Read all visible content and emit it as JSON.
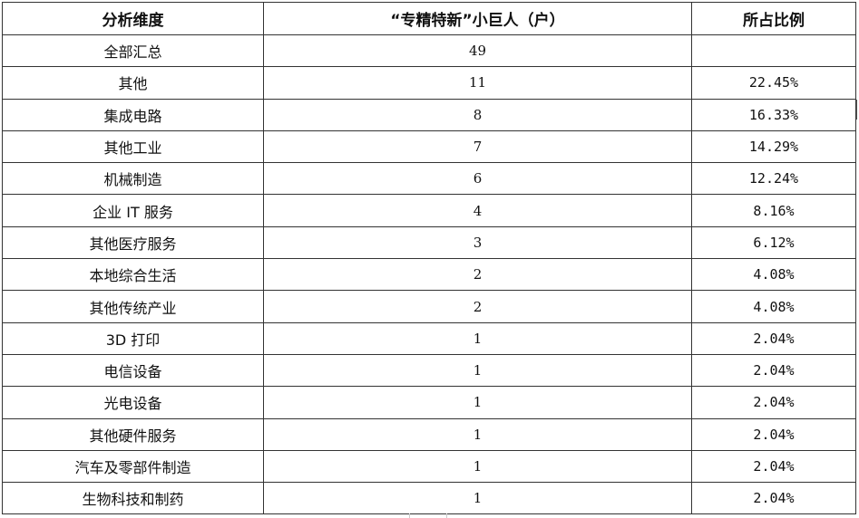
{
  "table": {
    "headers": [
      "分析维度",
      "“专精特新”小巨人（户）",
      "所占比例"
    ],
    "rows": [
      {
        "dimension": "全部汇总",
        "count": "49",
        "ratio": ""
      },
      {
        "dimension": "其他",
        "count": "11",
        "ratio": "22.45%"
      },
      {
        "dimension": "集成电路",
        "count": "8",
        "ratio": "16.33%"
      },
      {
        "dimension": "其他工业",
        "count": "7",
        "ratio": "14.29%"
      },
      {
        "dimension": "机械制造",
        "count": "6",
        "ratio": "12.24%"
      },
      {
        "dimension": "企业 IT 服务",
        "count": "4",
        "ratio": "8.16%"
      },
      {
        "dimension": "其他医疗服务",
        "count": "3",
        "ratio": "6.12%"
      },
      {
        "dimension": "本地综合生活",
        "count": "2",
        "ratio": "4.08%"
      },
      {
        "dimension": "其他传统产业",
        "count": "2",
        "ratio": "4.08%"
      },
      {
        "dimension": "3D 打印",
        "count": "1",
        "ratio": "2.04%"
      },
      {
        "dimension": "电信设备",
        "count": "1",
        "ratio": "2.04%"
      },
      {
        "dimension": "光电设备",
        "count": "1",
        "ratio": "2.04%"
      },
      {
        "dimension": "其他硬件服务",
        "count": "1",
        "ratio": "2.04%"
      },
      {
        "dimension": "汽车及零部件制造",
        "count": "1",
        "ratio": "2.04%"
      },
      {
        "dimension": "生物科技和制药",
        "count": "1",
        "ratio": "2.04%"
      }
    ]
  }
}
